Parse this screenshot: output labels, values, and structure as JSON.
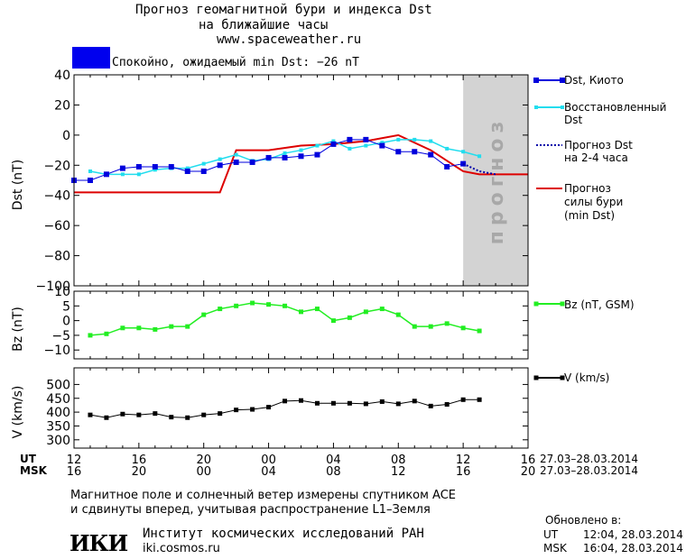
{
  "header": {
    "title_line1": "Прогноз геомагнитной бури и индекса Dst",
    "title_line2": "на ближайшие часы",
    "url": "www.spaceweather.ru"
  },
  "status": {
    "text": "Спокойно, ожидаемый min Dst: −26 nT",
    "color": "#0000ee"
  },
  "forecast_zone_label": "прогноз",
  "colors": {
    "dst_kyoto": "#0000dd",
    "dst_restored": "#22ddee",
    "dst_forecast": "#0000aa",
    "storm_forecast": "#dd0000",
    "bz": "#22ee22",
    "v": "#000000",
    "forecast_zone": "#d3d3d3"
  },
  "legend": {
    "dst_kyoto": "Dst, Киото",
    "dst_restored_1": "Восстановленный",
    "dst_restored_2": "Dst",
    "dst_forecast_1": "Прогноз Dst",
    "dst_forecast_2": "на 2-4 часа",
    "storm_1": "Прогноз",
    "storm_2": "силы бури",
    "storm_3": "(min Dst)",
    "bz": "Bz (nT, GSM)",
    "v": "V (km/s)"
  },
  "time_axis": {
    "ut_label": "UT",
    "msk_label": "MSK",
    "ut_ticks": [
      "12",
      "16",
      "20",
      "00",
      "04",
      "08",
      "12",
      "16"
    ],
    "msk_ticks": [
      "16",
      "20",
      "00",
      "04",
      "08",
      "12",
      "16",
      "20"
    ],
    "ut_range": "27.03–28.03.2014",
    "msk_range": "27.03–28.03.2014"
  },
  "chart_data": [
    {
      "type": "line",
      "ylabel": "Dst (nT)",
      "ylim": [
        -100,
        40
      ],
      "yticks": [
        "40",
        "20",
        "0",
        "−20",
        "−40",
        "−60",
        "−80",
        "−100"
      ],
      "x_unit": "hours (UT 12:00 27.03 = 12)",
      "xlim": [
        12,
        40
      ],
      "forecast_zone": [
        36,
        40
      ],
      "series": [
        {
          "name": "Dst, Киото",
          "x": [
            12,
            13,
            14,
            15,
            16,
            17,
            18,
            19,
            20,
            21,
            22,
            23,
            24,
            25,
            26,
            27,
            28,
            29,
            30,
            31,
            32,
            33,
            34,
            35,
            36
          ],
          "values": [
            -30,
            -30,
            -26,
            -22,
            -21,
            -21,
            -21,
            -24,
            -24,
            -20,
            -18,
            -18,
            -15,
            -15,
            -14,
            -13,
            -6,
            -3,
            -3,
            -7,
            -11,
            -11,
            -13,
            -21,
            -19
          ]
        },
        {
          "name": "Восстановленный Dst",
          "x": [
            13,
            14,
            15,
            16,
            17,
            18,
            19,
            20,
            21,
            22,
            23,
            24,
            25,
            26,
            27,
            28,
            29,
            30,
            31,
            32,
            33,
            34,
            35,
            36,
            37
          ],
          "values": [
            -24,
            -26,
            -26,
            -26,
            -23,
            -22,
            -22,
            -19,
            -16,
            -13,
            -17,
            -16,
            -12,
            -10,
            -7,
            -4,
            -9,
            -7,
            -5,
            -3,
            -3,
            -4,
            -9,
            -11,
            -14
          ]
        },
        {
          "name": "Прогноз Dst на 2-4 часа",
          "x": [
            36,
            37,
            38
          ],
          "values": [
            -19,
            -24,
            -26
          ]
        },
        {
          "name": "Прогноз силы бури (min Dst)",
          "x": [
            12,
            21,
            22,
            24,
            26,
            28,
            30,
            32,
            34,
            36,
            37,
            40
          ],
          "values": [
            -38,
            -38,
            -10,
            -10,
            -7,
            -6,
            -4,
            0,
            -10,
            -24,
            -26,
            -26
          ]
        }
      ]
    },
    {
      "type": "line",
      "ylabel": "Bz (nT)",
      "ylim": [
        -13,
        10
      ],
      "yticks": [
        "10",
        "5",
        "0",
        "−5",
        "−10"
      ],
      "series": [
        {
          "name": "Bz (nT, GSM)",
          "x": [
            13,
            14,
            15,
            16,
            17,
            18,
            19,
            20,
            21,
            22,
            23,
            24,
            25,
            26,
            27,
            28,
            29,
            30,
            31,
            32,
            33,
            34,
            35,
            36,
            37
          ],
          "values": [
            -5,
            -4.5,
            -2.5,
            -2.5,
            -3,
            -2,
            -2,
            2,
            4,
            5,
            6,
            5.5,
            5,
            3,
            4,
            0,
            1,
            3,
            4,
            2,
            -2,
            -2,
            -1,
            -2.5,
            -3.5
          ]
        }
      ]
    },
    {
      "type": "line",
      "ylabel": "V (km/s)",
      "ylim": [
        270,
        560
      ],
      "yticks": [
        "500",
        "450",
        "400",
        "350",
        "300"
      ],
      "series": [
        {
          "name": "V (km/s)",
          "x": [
            13,
            14,
            15,
            16,
            17,
            18,
            19,
            20,
            21,
            22,
            23,
            24,
            25,
            26,
            27,
            28,
            29,
            30,
            31,
            32,
            33,
            34,
            35,
            36,
            37
          ],
          "values": [
            390,
            380,
            393,
            390,
            395,
            382,
            380,
            390,
            395,
            408,
            410,
            418,
            440,
            442,
            432,
            432,
            432,
            430,
            438,
            430,
            440,
            422,
            428,
            445,
            445
          ]
        }
      ]
    }
  ],
  "footer": {
    "line1": "Магнитное поле и солнечный ветер измерены спутником ACE",
    "line2": "и сдвинуты вперед, учитывая распространение L1–Земля",
    "institute": "Институт космических исследований РАН",
    "site": "iki.cosmos.ru",
    "logo_text": "ИКИ",
    "updated_label": "Обновлено в:",
    "updated_ut_label": "UT",
    "updated_ut": "12:04, 28.03.2014",
    "updated_msk_label": "MSK",
    "updated_msk": "16:04, 28.03.2014"
  }
}
